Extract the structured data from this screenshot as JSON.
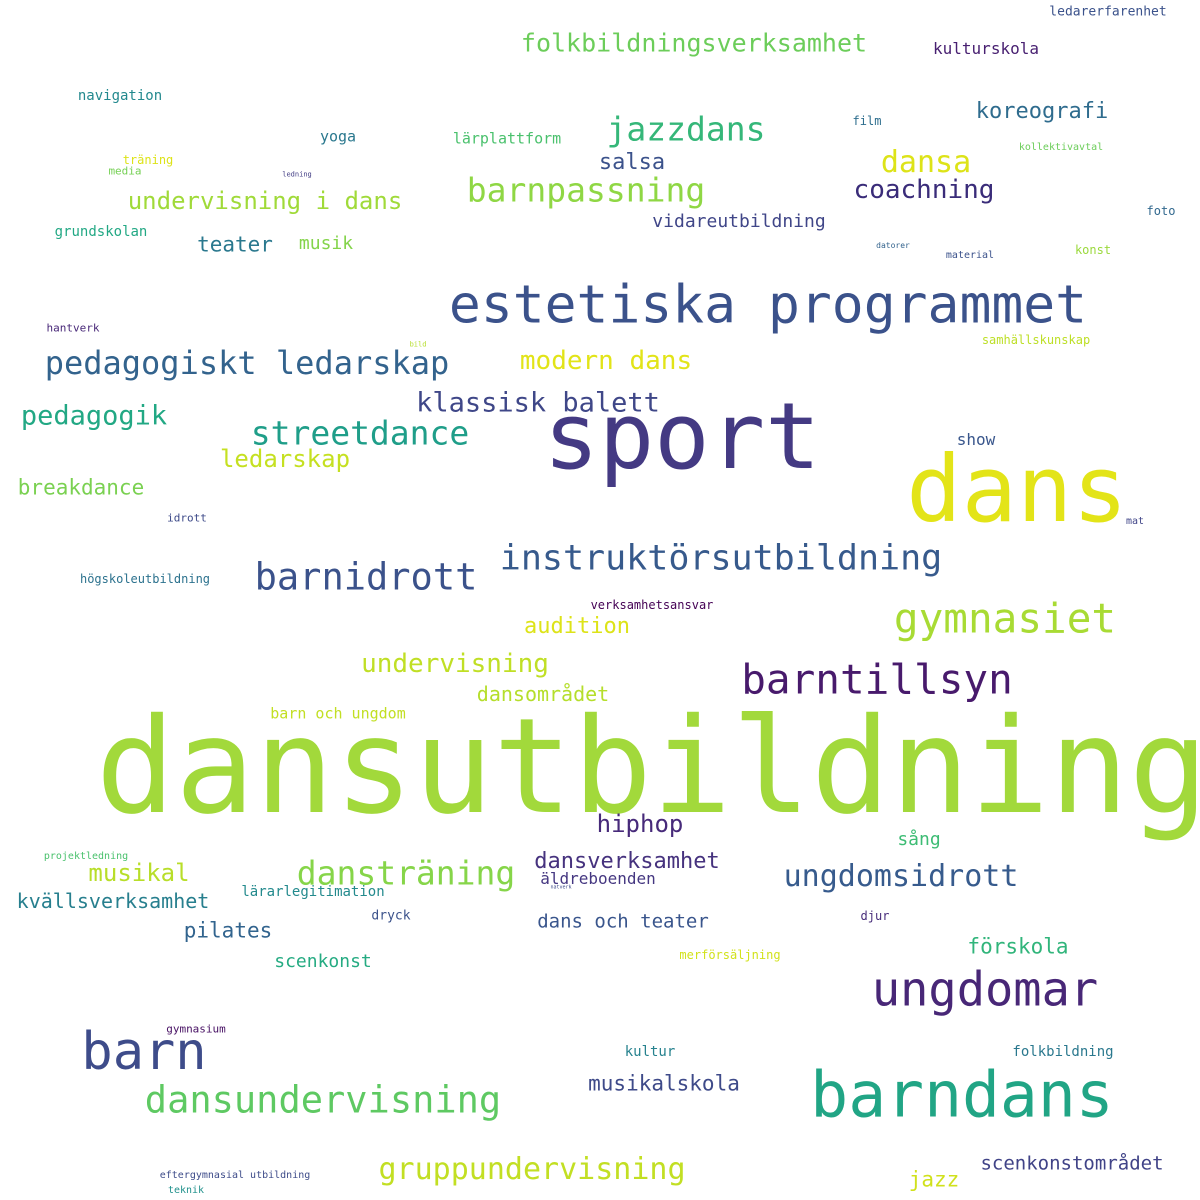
{
  "words": [
    {
      "text": "dansutbildning",
      "color": "#a2d93b"
    },
    {
      "text": "sport",
      "color": "#443a83"
    },
    {
      "text": "dans",
      "color": "#e3e418"
    },
    {
      "text": "barndans",
      "color": "#21a585"
    },
    {
      "text": "estetiska programmet",
      "color": "#3b528b"
    },
    {
      "text": "barn",
      "color": "#3e4c8a"
    },
    {
      "text": "ungdomar",
      "color": "#482777"
    },
    {
      "text": "barntillsyn",
      "color": "#481a6c"
    },
    {
      "text": "gymnasiet",
      "color": "#a8db34"
    },
    {
      "text": "barnidrott",
      "color": "#3b528b"
    },
    {
      "text": "instruktörsutbildning",
      "color": "#375a8c"
    },
    {
      "text": "dansundervisning",
      "color": "#5ec962"
    },
    {
      "text": "streetdance",
      "color": "#1f9e89"
    },
    {
      "text": "pedagogiskt ledarskap",
      "color": "#33638d"
    },
    {
      "text": "jazzdans",
      "color": "#35b779"
    },
    {
      "text": "barnpassning",
      "color": "#8fd744"
    },
    {
      "text": "dansträning",
      "color": "#86d549"
    },
    {
      "text": "gruppundervisning",
      "color": "#c2df23"
    },
    {
      "text": "ungdomsidrott",
      "color": "#375b8d"
    },
    {
      "text": "dansa",
      "color": "#dde318"
    },
    {
      "text": "folkbildningsverksamhet",
      "color": "#6ccd5a"
    },
    {
      "text": "klassisk balett",
      "color": "#3f4788"
    },
    {
      "text": "pedagogik",
      "color": "#22a884"
    },
    {
      "text": "undervisning",
      "color": "#c0df25"
    },
    {
      "text": "modern dans",
      "color": "#e2e418"
    },
    {
      "text": "coachning",
      "color": "#3a2c79"
    },
    {
      "text": "undervisning i dans",
      "color": "#a0da39"
    },
    {
      "text": "hiphop",
      "color": "#472a7a"
    },
    {
      "text": "ledarskap",
      "color": "#c5e021"
    },
    {
      "text": "dansverksamhet",
      "color": "#46327e"
    },
    {
      "text": "musikal",
      "color": "#b8de29"
    },
    {
      "text": "koreografi",
      "color": "#2f6c8e"
    },
    {
      "text": "salsa",
      "color": "#3b528b"
    },
    {
      "text": "audition",
      "color": "#dde318"
    },
    {
      "text": "breakdance",
      "color": "#7ad151"
    },
    {
      "text": "kvällsverksamhet",
      "color": "#277f8e"
    },
    {
      "text": "musikalskola",
      "color": "#3e4a89"
    },
    {
      "text": "dansområdet",
      "color": "#b5de2b"
    },
    {
      "text": "förskola",
      "color": "#31b57b"
    },
    {
      "text": "pilates",
      "color": "#32648e"
    },
    {
      "text": "scenkonstområdet",
      "color": "#404387"
    },
    {
      "text": "jazz",
      "color": "#d0e11c"
    },
    {
      "text": "teater",
      "color": "#2a788e"
    },
    {
      "text": "dans och teater",
      "color": "#39558c"
    },
    {
      "text": "scenkonst",
      "color": "#25ab82"
    },
    {
      "text": "sång",
      "color": "#3dbc74"
    },
    {
      "text": "vidareutbildning",
      "color": "#404688"
    },
    {
      "text": "musik",
      "color": "#84d44b"
    },
    {
      "text": "äldreboenden",
      "color": "#453781"
    },
    {
      "text": "kulturskola",
      "color": "#482071"
    },
    {
      "text": "show",
      "color": "#39568c"
    },
    {
      "text": "lärplattform",
      "color": "#4ac16d"
    },
    {
      "text": "yoga",
      "color": "#2a788e"
    },
    {
      "text": "barn och ungdom",
      "color": "#c2df23"
    },
    {
      "text": "folkbildning",
      "color": "#2a788e"
    },
    {
      "text": "kultur",
      "color": "#26828e"
    },
    {
      "text": "grundskolan",
      "color": "#22a884"
    },
    {
      "text": "navigation",
      "color": "#23898e"
    },
    {
      "text": "lärarlegitimation",
      "color": "#238a8d"
    },
    {
      "text": "ledarerfarenhet",
      "color": "#3b528b"
    },
    {
      "text": "högskoleutbildning",
      "color": "#2c728e"
    },
    {
      "text": "samhällskunskap",
      "color": "#bddf26"
    },
    {
      "text": "verksamhetsansvar",
      "color": "#440154"
    },
    {
      "text": "konst",
      "color": "#9bd93c"
    },
    {
      "text": "dryck",
      "color": "#3b528b"
    },
    {
      "text": "film",
      "color": "#2e6e8e"
    },
    {
      "text": "merförsäljning",
      "color": "#d2e21b"
    },
    {
      "text": "foto",
      "color": "#31688e"
    },
    {
      "text": "djur",
      "color": "#472c7a"
    },
    {
      "text": "hantverk",
      "color": "#482878"
    },
    {
      "text": "idrott",
      "color": "#3e4a89"
    },
    {
      "text": "träning",
      "color": "#dde318"
    },
    {
      "text": "media",
      "color": "#75d054"
    },
    {
      "text": "gymnasium",
      "color": "#471063"
    },
    {
      "text": "mat",
      "color": "#404588"
    },
    {
      "text": "material",
      "color": "#3b528b"
    },
    {
      "text": "kollektivavtal",
      "color": "#6ccd5a"
    },
    {
      "text": "projektledning",
      "color": "#4ac16d"
    },
    {
      "text": "eftergymnasial utbildning",
      "color": "#3e4c8a"
    },
    {
      "text": "teknik",
      "color": "#21918c"
    },
    {
      "text": "datorer",
      "color": "#33638d"
    },
    {
      "text": "ledning",
      "color": "#433e85"
    },
    {
      "text": "bild",
      "color": "#b5de2b"
    },
    {
      "text": "natverk",
      "color": "#3e4a89"
    }
  ]
}
